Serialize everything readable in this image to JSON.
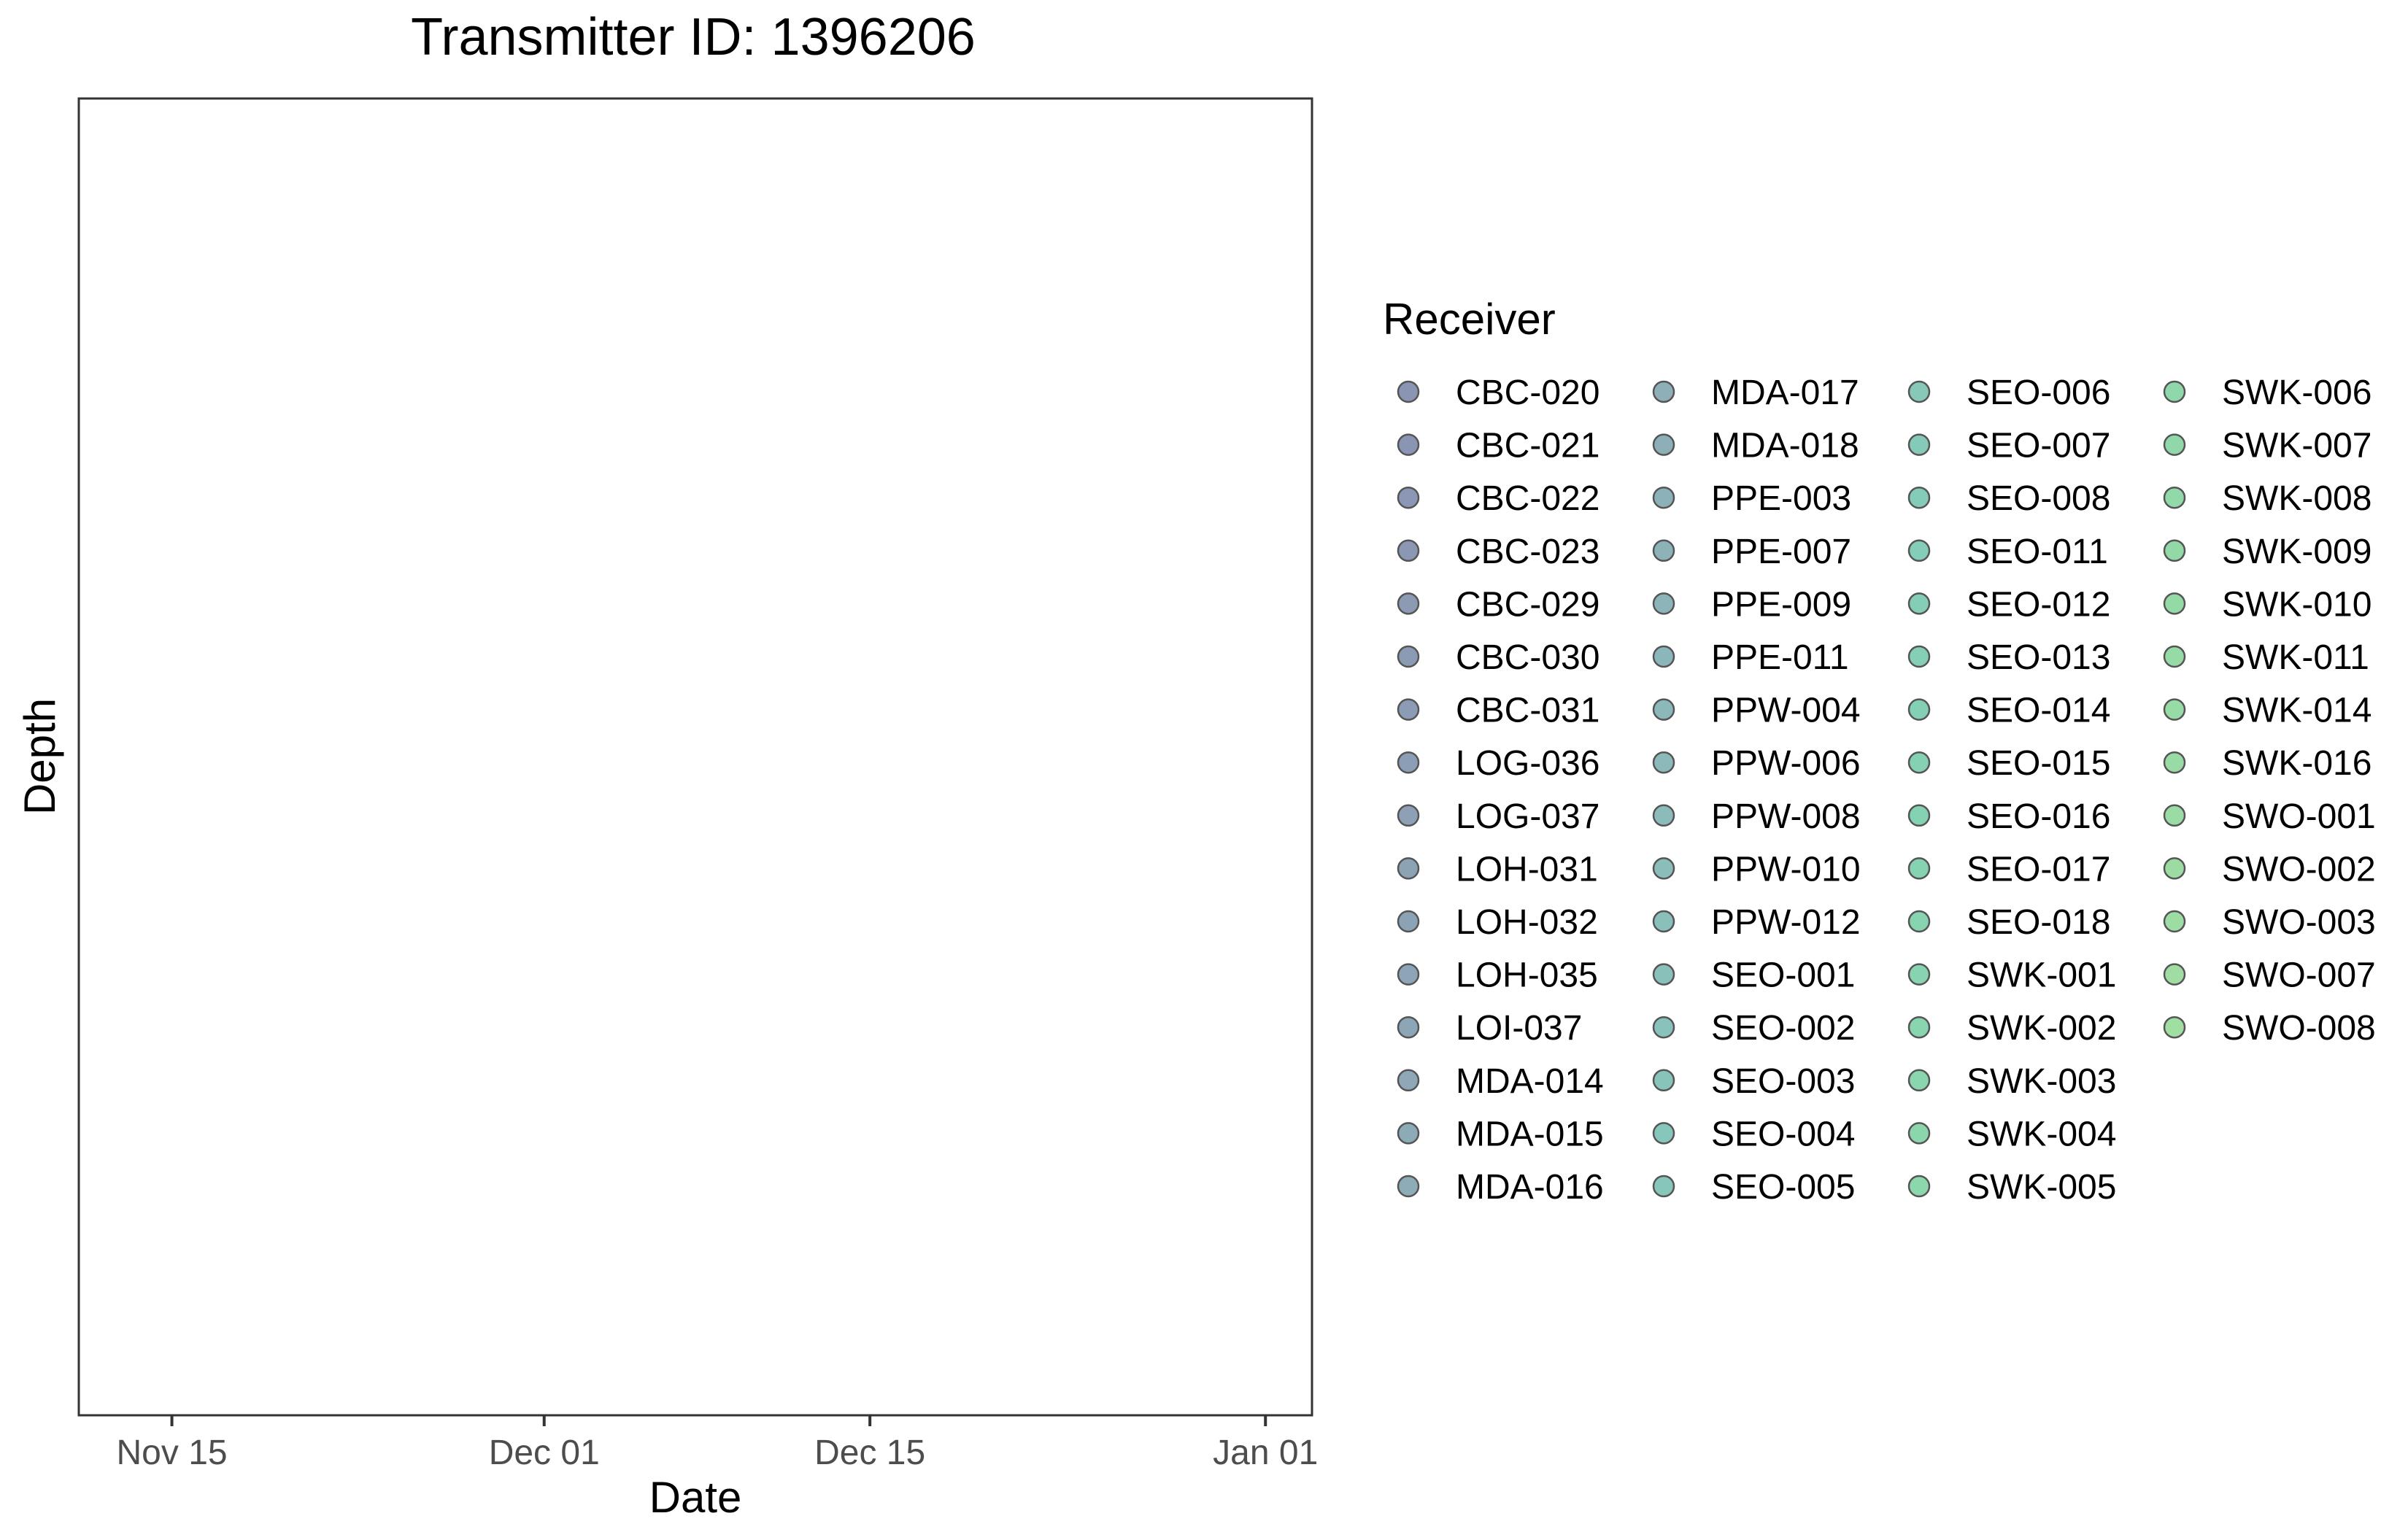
{
  "chart_data": {
    "type": "scatter",
    "title": "Transmitter ID: 1396206",
    "xlabel": "Date",
    "ylabel": "Depth",
    "x_axis": {
      "type": "date",
      "range": [
        "2024-11-11",
        "2025-01-03"
      ],
      "ticks": [
        {
          "date": "2024-11-15",
          "label": "Nov 15"
        },
        {
          "date": "2024-12-01",
          "label": "Dec 01"
        },
        {
          "date": "2024-12-15",
          "label": "Dec 15"
        },
        {
          "date": "2025-01-01",
          "label": "Jan 01"
        }
      ]
    },
    "y_axis": {
      "ticks": []
    },
    "grid": false,
    "series": [],
    "legend": {
      "title": "Receiver",
      "position": "right",
      "items": [
        {
          "label": "CBC-020",
          "color": "#8a95b3"
        },
        {
          "label": "CBC-021",
          "color": "#8a95b4"
        },
        {
          "label": "CBC-022",
          "color": "#8b97b4"
        },
        {
          "label": "CBC-023",
          "color": "#8b98b4"
        },
        {
          "label": "CBC-029",
          "color": "#8c9ab4"
        },
        {
          "label": "CBC-030",
          "color": "#8c9bb4"
        },
        {
          "label": "CBC-031",
          "color": "#8c9cb5"
        },
        {
          "label": "LOG-036",
          "color": "#8c9eb5"
        },
        {
          "label": "LOG-037",
          "color": "#8da0b5"
        },
        {
          "label": "LOH-031",
          "color": "#8ca2b5"
        },
        {
          "label": "LOH-032",
          "color": "#8ca3b5"
        },
        {
          "label": "LOH-035",
          "color": "#8da5b6"
        },
        {
          "label": "LOI-037",
          "color": "#8da6b6"
        },
        {
          "label": "MDA-014",
          "color": "#8ea8b7"
        },
        {
          "label": "MDA-015",
          "color": "#8daab7"
        },
        {
          "label": "MDA-016",
          "color": "#8dacb7"
        },
        {
          "label": "MDA-017",
          "color": "#8eaeb8"
        },
        {
          "label": "MDA-018",
          "color": "#8dafb8"
        },
        {
          "label": "PPE-003",
          "color": "#8db1b9"
        },
        {
          "label": "PPE-007",
          "color": "#8db3b9"
        },
        {
          "label": "PPE-009",
          "color": "#8db5b9"
        },
        {
          "label": "PPE-011",
          "color": "#8cb7ba"
        },
        {
          "label": "PPW-004",
          "color": "#8cb8ba"
        },
        {
          "label": "PPW-006",
          "color": "#8cbaba"
        },
        {
          "label": "PPW-008",
          "color": "#8bbcba"
        },
        {
          "label": "PPW-010",
          "color": "#8bbdba"
        },
        {
          "label": "PPW-012",
          "color": "#8abfba"
        },
        {
          "label": "SEO-001",
          "color": "#89c1ba"
        },
        {
          "label": "SEO-002",
          "color": "#89c2ba"
        },
        {
          "label": "SEO-003",
          "color": "#88c4ba"
        },
        {
          "label": "SEO-004",
          "color": "#87c6ba"
        },
        {
          "label": "SEO-005",
          "color": "#87c7ba"
        },
        {
          "label": "SEO-006",
          "color": "#86c9b9"
        },
        {
          "label": "SEO-007",
          "color": "#85cab9"
        },
        {
          "label": "SEO-008",
          "color": "#85ccb8"
        },
        {
          "label": "SEO-011",
          "color": "#84cdb8"
        },
        {
          "label": "SEO-012",
          "color": "#84ceb7"
        },
        {
          "label": "SEO-013",
          "color": "#84cfb6"
        },
        {
          "label": "SEO-014",
          "color": "#84d0b5"
        },
        {
          "label": "SEO-015",
          "color": "#85d1b4"
        },
        {
          "label": "SEO-016",
          "color": "#85d2b3"
        },
        {
          "label": "SEO-017",
          "color": "#86d3b2"
        },
        {
          "label": "SEO-018",
          "color": "#87d4b1"
        },
        {
          "label": "SWK-001",
          "color": "#88d4b0"
        },
        {
          "label": "SWK-002",
          "color": "#89d5af"
        },
        {
          "label": "SWK-003",
          "color": "#8ad6ae"
        },
        {
          "label": "SWK-004",
          "color": "#8bd6ad"
        },
        {
          "label": "SWK-005",
          "color": "#8dd7ac"
        },
        {
          "label": "SWK-006",
          "color": "#8ed8ab"
        },
        {
          "label": "SWK-007",
          "color": "#90d8aa"
        },
        {
          "label": "SWK-008",
          "color": "#91d9a9"
        },
        {
          "label": "SWK-009",
          "color": "#93d9a8"
        },
        {
          "label": "SWK-010",
          "color": "#94daa7"
        },
        {
          "label": "SWK-011",
          "color": "#96daa6"
        },
        {
          "label": "SWK-014",
          "color": "#97dba6"
        },
        {
          "label": "SWK-016",
          "color": "#99dba5"
        },
        {
          "label": "SWO-001",
          "color": "#9adca4"
        },
        {
          "label": "SWO-002",
          "color": "#9cdca3"
        },
        {
          "label": "SWO-003",
          "color": "#9ddda3"
        },
        {
          "label": "SWO-007",
          "color": "#9fdda2"
        },
        {
          "label": "SWO-008",
          "color": "#a0dea2"
        }
      ]
    }
  }
}
